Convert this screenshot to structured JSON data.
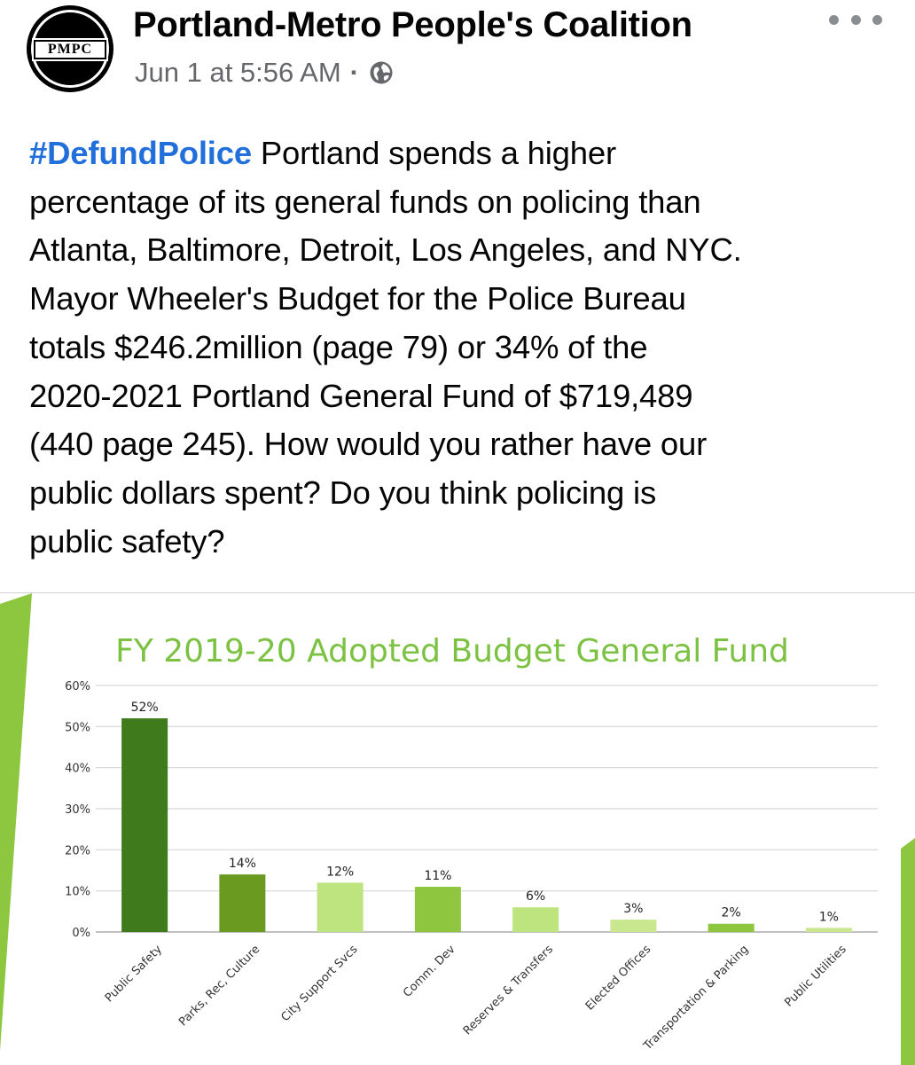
{
  "post": {
    "page_name": "Portland-Metro People's Coalition",
    "avatar_text": "PMPC",
    "timestamp": "Jun 1 at 5:56 AM",
    "separator": "·",
    "audience_icon": "globe-icon",
    "more_icon": "more-horizontal-icon",
    "hashtag": "#DefundPolice",
    "body_lines": [
      "Portland spends a higher",
      "percentage of its general funds on policing than",
      "Atlanta, Baltimore, Detroit, Los Angeles, and NYC.",
      "Mayor Wheeler's Budget for the Police Bureau",
      "totals $246.2million (page 79) or 34% of the",
      "2020-2021 Portland General Fund of $719,489",
      "(440 page 245). How would you rather have our",
      "public dollars spent? Do you think policing is",
      "public safety?"
    ]
  },
  "colors": {
    "hashtag": "#216fdb",
    "meta_text": "#65676b",
    "accent_green": "#8dc63f",
    "title_green": "#7cc242"
  },
  "chart_data": {
    "type": "bar",
    "title": "FY 2019-20 Adopted Budget General Fund",
    "categories": [
      "Public Safety",
      "Parks, Rec, Culture",
      "City Support Svcs",
      "Comm. Dev",
      "Reserves & Transfers",
      "Elected Offices",
      "Transportation & Parking",
      "Public Utilities"
    ],
    "values": [
      52,
      14,
      12,
      11,
      6,
      3,
      2,
      1
    ],
    "value_labels": [
      "52%",
      "14%",
      "12%",
      "11%",
      "6%",
      "3%",
      "2%",
      "1%"
    ],
    "bar_colors": [
      "#3f7a1d",
      "#6b9a21",
      "#bde47f",
      "#8ec63f",
      "#bde47f",
      "#c8e78f",
      "#8ec63f",
      "#c8e78f"
    ],
    "y_ticks": [
      "0%",
      "10%",
      "20%",
      "30%",
      "40%",
      "50%",
      "60%"
    ],
    "ylim": [
      0,
      60
    ],
    "grid": true,
    "legend": "none"
  }
}
